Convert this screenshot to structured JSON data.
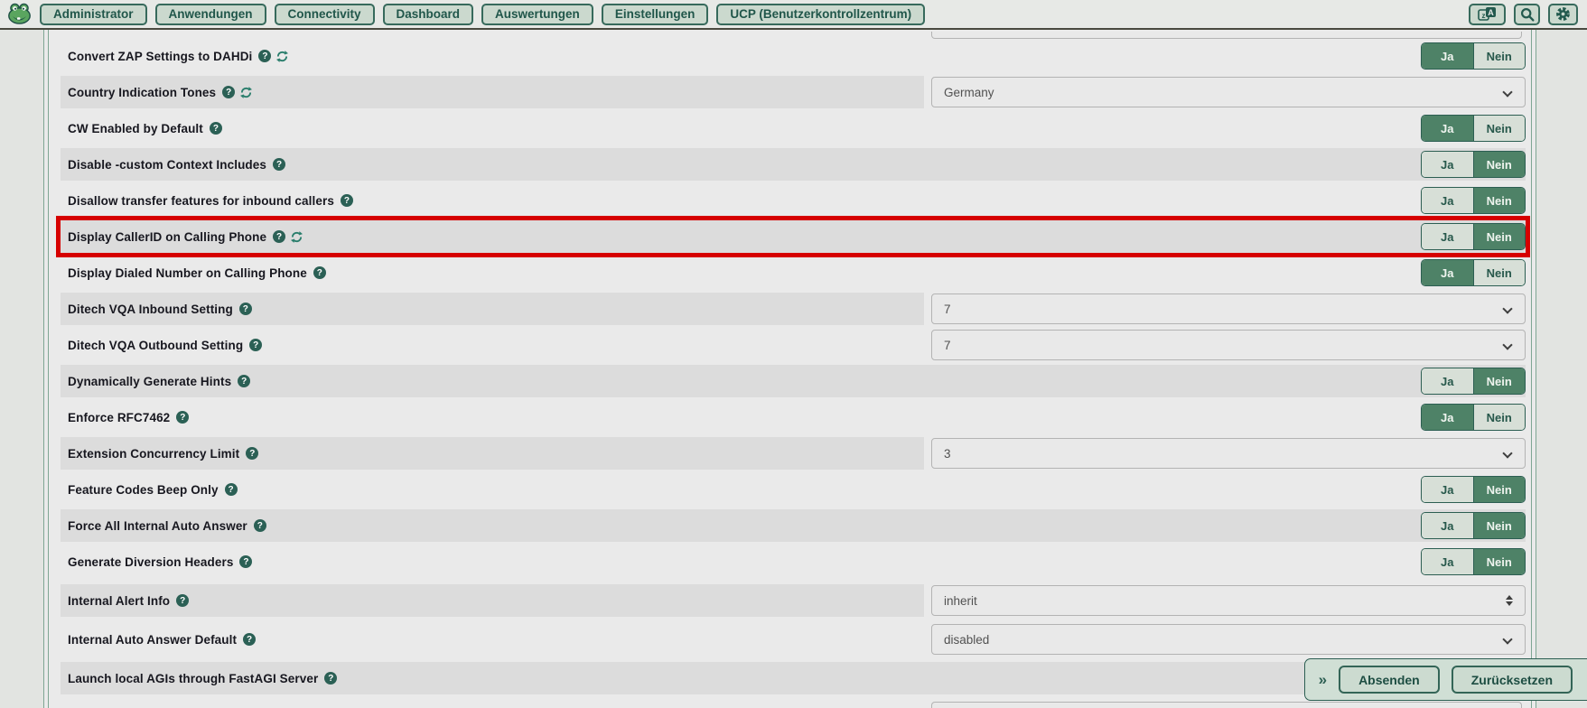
{
  "nav": {
    "items": [
      {
        "label": "Administrator"
      },
      {
        "label": "Anwendungen"
      },
      {
        "label": "Connectivity"
      },
      {
        "label": "Dashboard"
      },
      {
        "label": "Auswertungen"
      },
      {
        "label": "Einstellungen"
      },
      {
        "label": "UCP (Benutzerkontrollzentrum)"
      }
    ],
    "icon_buttons": [
      {
        "icon": "translate-icon"
      },
      {
        "icon": "search-icon"
      },
      {
        "icon": "gear-icon"
      }
    ]
  },
  "settings": {
    "yes_label": "Ja",
    "no_label": "Nein",
    "rows": [
      {
        "label": "Convert ZAP Settings to DAHDi",
        "icons": [
          "help",
          "refresh"
        ],
        "shade": "light",
        "control": {
          "type": "yesno",
          "value": "Ja"
        }
      },
      {
        "label": "Country Indication Tones",
        "icons": [
          "help",
          "refresh"
        ],
        "shade": "dark",
        "control": {
          "type": "select",
          "value": "Germany",
          "arrow": "chevron"
        }
      },
      {
        "label": "CW Enabled by Default",
        "icons": [
          "help"
        ],
        "shade": "light",
        "control": {
          "type": "yesno",
          "value": "Ja"
        }
      },
      {
        "label": "Disable -custom Context Includes",
        "icons": [
          "help"
        ],
        "shade": "dark",
        "control": {
          "type": "yesno",
          "value": "Nein"
        }
      },
      {
        "label": "Disallow transfer features for inbound callers",
        "icons": [
          "help"
        ],
        "shade": "light",
        "control": {
          "type": "yesno",
          "value": "Nein"
        }
      },
      {
        "label": "Display CallerID on Calling Phone",
        "icons": [
          "help",
          "refresh"
        ],
        "shade": "dark",
        "highlighted": true,
        "control": {
          "type": "yesno",
          "value": "Nein"
        }
      },
      {
        "label": "Display Dialed Number on Calling Phone",
        "icons": [
          "help"
        ],
        "shade": "light",
        "control": {
          "type": "yesno",
          "value": "Ja"
        }
      },
      {
        "label": "Ditech VQA Inbound Setting",
        "icons": [
          "help"
        ],
        "shade": "dark",
        "control": {
          "type": "select",
          "value": "7",
          "arrow": "chevron"
        }
      },
      {
        "label": "Ditech VQA Outbound Setting",
        "icons": [
          "help"
        ],
        "shade": "light",
        "control": {
          "type": "select",
          "value": "7",
          "arrow": "chevron"
        }
      },
      {
        "label": "Dynamically Generate Hints",
        "icons": [
          "help"
        ],
        "shade": "dark",
        "control": {
          "type": "yesno",
          "value": "Nein"
        }
      },
      {
        "label": "Enforce RFC7462",
        "icons": [
          "help"
        ],
        "shade": "light",
        "control": {
          "type": "yesno",
          "value": "Ja"
        }
      },
      {
        "label": "Extension Concurrency Limit",
        "icons": [
          "help"
        ],
        "shade": "dark",
        "control": {
          "type": "select",
          "value": "3",
          "arrow": "chevron"
        }
      },
      {
        "label": "Feature Codes Beep Only",
        "icons": [
          "help"
        ],
        "shade": "light",
        "control": {
          "type": "yesno",
          "value": "Nein"
        }
      },
      {
        "label": "Force All Internal Auto Answer",
        "icons": [
          "help"
        ],
        "shade": "dark",
        "control": {
          "type": "yesno",
          "value": "Nein"
        }
      },
      {
        "label": "Generate Diversion Headers",
        "icons": [
          "help"
        ],
        "shade": "light",
        "control": {
          "type": "yesno",
          "value": "Nein"
        }
      },
      {
        "label": "Internal Alert Info",
        "icons": [
          "help"
        ],
        "shade": "dark",
        "control": {
          "type": "select",
          "value": "inherit",
          "arrow": "updown"
        }
      },
      {
        "label": "Internal Auto Answer Default",
        "icons": [
          "help"
        ],
        "shade": "light",
        "control": {
          "type": "select",
          "value": "disabled",
          "arrow": "chevron"
        }
      },
      {
        "label": "Launch local AGIs through FastAGI Server",
        "icons": [
          "help"
        ],
        "shade": "dark",
        "control": {
          "type": "none"
        }
      }
    ]
  },
  "footer": {
    "collapse_label": "»",
    "submit_label": "Absenden",
    "reset_label": "Zurücksetzen"
  },
  "colors": {
    "accent_teal": "#2b6055",
    "selected_green": "#4e8267",
    "unselected_green": "#d7dfd7",
    "highlight_red": "#d60000",
    "stripe_gray": "#dcdcdc",
    "panel_gray": "#eaeaea",
    "nav_button_bg": "#cbd9ce"
  }
}
